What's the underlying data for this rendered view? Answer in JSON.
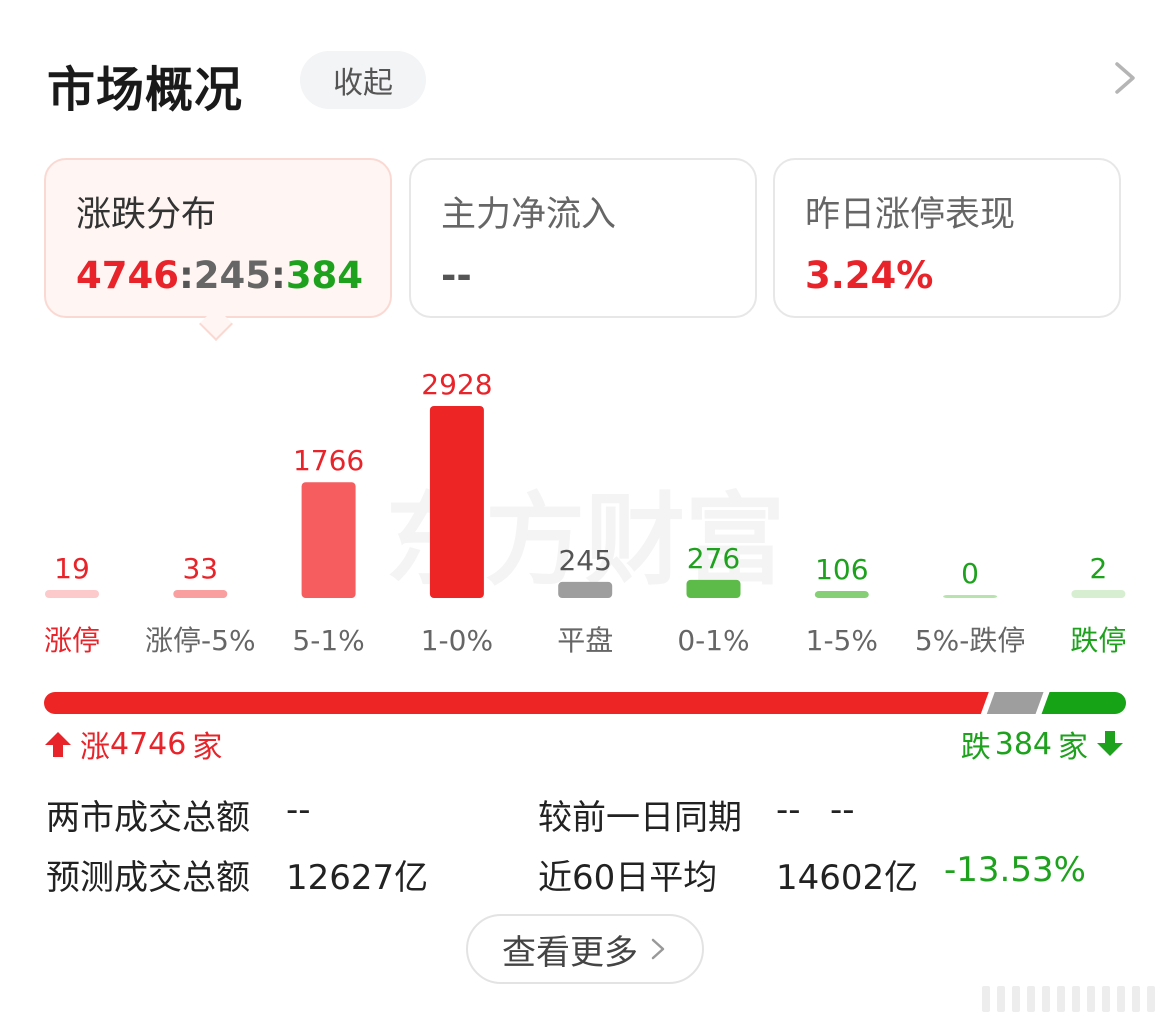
{
  "header": {
    "title": "市场概况",
    "collapse_label": "收起",
    "more_arrow_icon": "chevron-right-icon"
  },
  "cards": [
    {
      "label": "涨跌分布",
      "value_up": "4746",
      "value_flat": "245",
      "value_down": "384",
      "separator": ":",
      "active": true
    },
    {
      "label": "主力净流入",
      "value": "--",
      "active": false
    },
    {
      "label": "昨日涨停表现",
      "value": "3.24%",
      "active": false
    }
  ],
  "chart_data": {
    "type": "bar",
    "categories": [
      "涨停",
      "涨停-5%",
      "5-1%",
      "1-0%",
      "平盘",
      "0-1%",
      "1-5%",
      "5%-跌停",
      "跌停"
    ],
    "values": [
      19,
      33,
      1766,
      2928,
      245,
      276,
      106,
      0,
      2
    ],
    "colors": [
      "#fccaca",
      "#f99fa0",
      "#f65d5e",
      "#ee2525",
      "#9e9e9e",
      "#5dbb4a",
      "#86cf76",
      "#b8e2ae",
      "#d7efd0"
    ],
    "label_colors": [
      "#e8242a",
      "#e8242a",
      "#e8242a",
      "#e8242a",
      "#555555",
      "#1ea21e",
      "#1ea21e",
      "#1ea21e",
      "#1ea21e"
    ],
    "category_colors": [
      "#e8242a",
      "#666666",
      "#666666",
      "#666666",
      "#666666",
      "#666666",
      "#666666",
      "#666666",
      "#1ea21e"
    ],
    "watermark": "东方财富"
  },
  "distribution_bar": {
    "up_count": 4746,
    "flat_count": 245,
    "down_count": 384,
    "up_color": "#ee2525",
    "flat_color": "#9e9e9e",
    "down_color": "#16a316"
  },
  "summary": {
    "up_prefix": "涨",
    "up_count_text": "4746",
    "up_suffix": "家",
    "down_prefix": "跌",
    "down_count_text": "384",
    "down_suffix": "家",
    "up_icon": "arrow-up-icon",
    "down_icon": "arrow-down-icon"
  },
  "stats": {
    "total_turnover_label": "两市成交总额",
    "total_turnover_value": "--",
    "vs_prev_label": "较前一日同期",
    "vs_prev_value1": "--",
    "vs_prev_value2": "--",
    "forecast_label": "预测成交总额",
    "forecast_value": "12627亿",
    "avg60_label": "近60日平均",
    "avg60_value": "14602亿",
    "avg60_change": "-13.53%"
  },
  "more_button": {
    "label": "查看更多",
    "icon": "chevron-right-icon"
  },
  "colors": {
    "red": "#e8242a",
    "green": "#1ea21e",
    "gray": "#666666"
  }
}
